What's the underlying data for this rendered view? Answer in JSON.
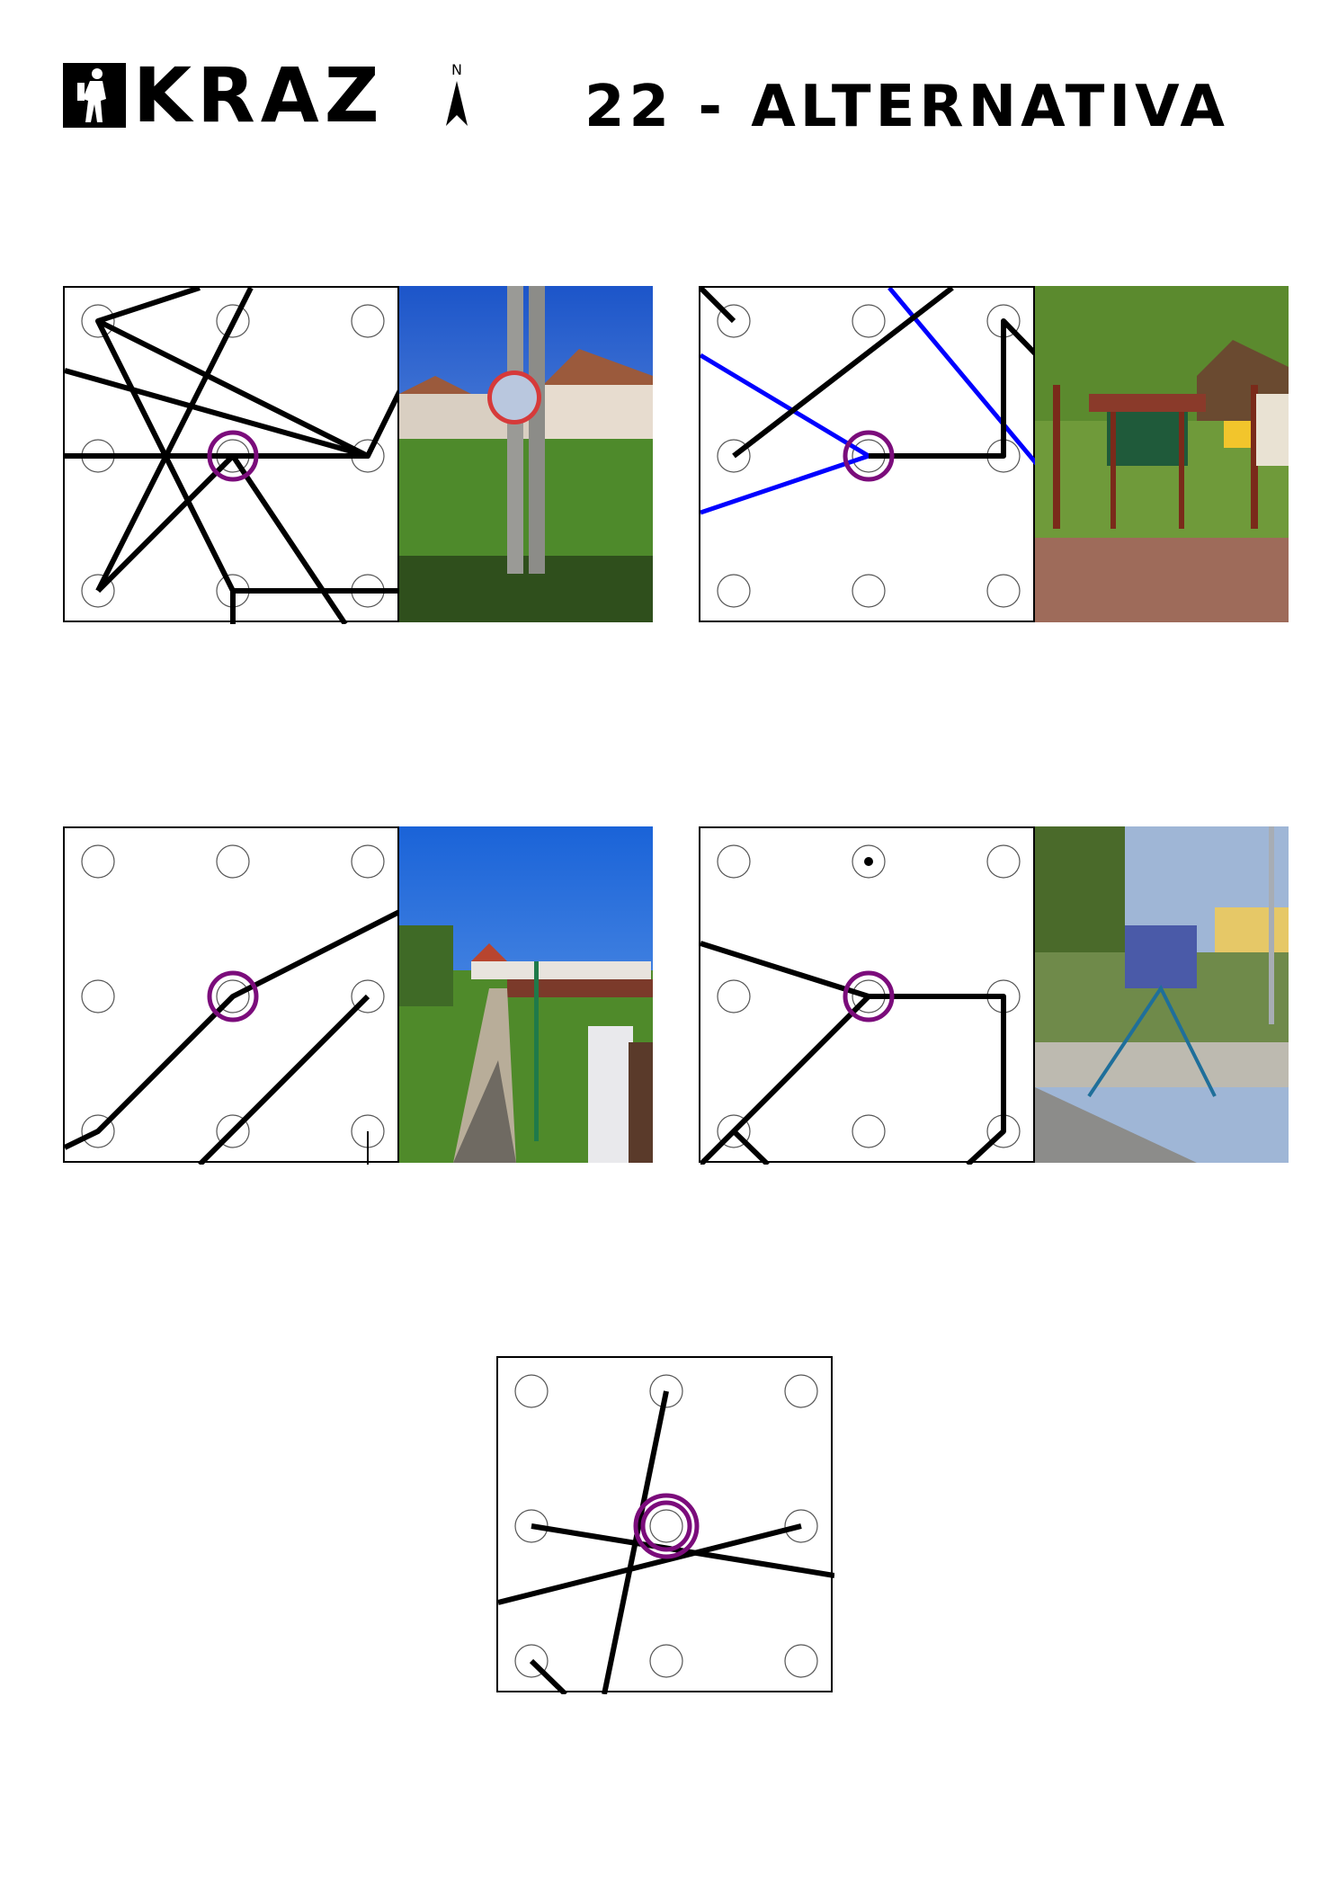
{
  "header": {
    "logo_text": "KRAZ",
    "north_label": "N",
    "title": "22 - ALTERNATIVA"
  },
  "colors": {
    "route": "#000000",
    "alt_route": "#0000ff",
    "control": "#7b0c7b",
    "circle": "#555555"
  },
  "icons": {
    "logo": "hiker-logo-icon",
    "north": "north-arrow-icon"
  },
  "cards": [
    {
      "name": "card-1",
      "photo": "convex traffic mirror on concrete pole in front of village houses"
    },
    {
      "name": "card-2",
      "photo": "wooden information boards in a park"
    },
    {
      "name": "card-3",
      "photo": "field path with green fence and white box"
    },
    {
      "name": "card-4",
      "photo": "fenced children's playground"
    },
    {
      "name": "card-5",
      "photo": ""
    }
  ]
}
